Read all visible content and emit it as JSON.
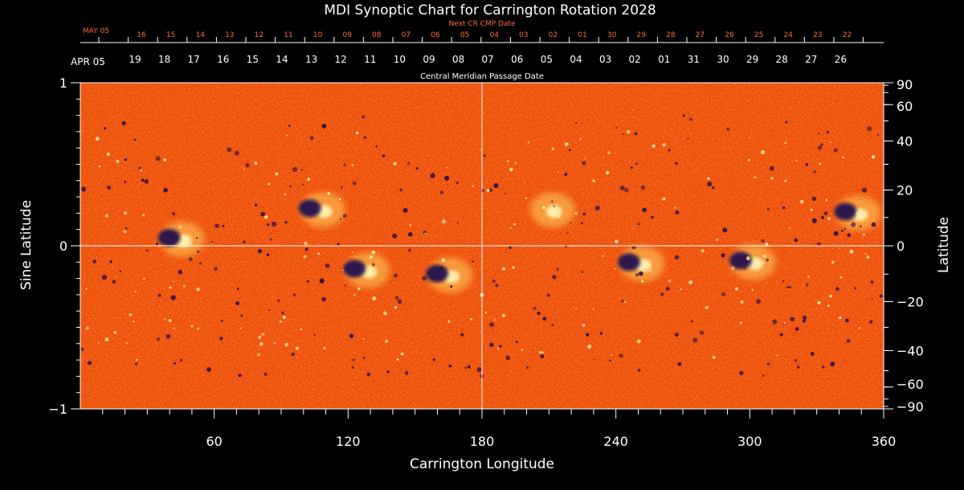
{
  "chart_data": {
    "type": "heatmap",
    "title": "MDI Synoptic Chart for Carrington Rotation 2028",
    "xlabel": "Carrington Longitude",
    "ylabel_left": "Sine Latitude",
    "ylabel_right": "Latitude",
    "xlim": [
      0,
      360
    ],
    "ylim": [
      -1,
      1
    ],
    "x_ticks": [
      60,
      120,
      180,
      240,
      300,
      360
    ],
    "y_ticks_left": [
      {
        "value": 1,
        "label": "1"
      },
      {
        "value": 0,
        "label": "0"
      },
      {
        "value": -1,
        "label": "−1"
      }
    ],
    "y_ticks_right": [
      {
        "lat": 90,
        "label": "90"
      },
      {
        "lat": 60,
        "label": "60"
      },
      {
        "lat": 40,
        "label": "40"
      },
      {
        "lat": 20,
        "label": "20"
      },
      {
        "lat": 0,
        "label": "0"
      },
      {
        "lat": -20,
        "label": "−20"
      },
      {
        "lat": -40,
        "label": "−40"
      },
      {
        "lat": -60,
        "label": "−60"
      },
      {
        "lat": -90,
        "label": "−90"
      }
    ],
    "top_axis_next": {
      "label": "Next CR CMP Date",
      "first_month": "MAY 05",
      "dates": [
        "16",
        "15",
        "14",
        "13",
        "12",
        "11",
        "10",
        "09",
        "08",
        "07",
        "06",
        "05",
        "04",
        "03",
        "02",
        "01",
        "30",
        "29",
        "28",
        "27",
        "26",
        "25",
        "24",
        "23",
        "22"
      ]
    },
    "top_axis_cmp": {
      "label": "Central Meridian Passage Date",
      "first_month": "APR 05",
      "dates": [
        "19",
        "18",
        "17",
        "16",
        "15",
        "14",
        "13",
        "12",
        "11",
        "10",
        "09",
        "08",
        "07",
        "06",
        "05",
        "04",
        "03",
        "02",
        "01",
        "31",
        "30",
        "29",
        "28",
        "27",
        "26"
      ]
    },
    "reference_lines": {
      "longitude": 180,
      "sine_latitude": 0
    },
    "active_regions": [
      {
        "lon": 42,
        "sinlat": 0.04,
        "polarity": "bipolar"
      },
      {
        "lon": 105,
        "sinlat": 0.22,
        "polarity": "bipolar"
      },
      {
        "lon": 125,
        "sinlat": -0.15,
        "polarity": "bipolar"
      },
      {
        "lon": 162,
        "sinlat": -0.18,
        "polarity": "bipolar"
      },
      {
        "lon": 208,
        "sinlat": 0.22,
        "polarity": "positive"
      },
      {
        "lon": 248,
        "sinlat": -0.11,
        "polarity": "bipolar"
      },
      {
        "lon": 298,
        "sinlat": -0.1,
        "polarity": "bipolar"
      },
      {
        "lon": 345,
        "sinlat": 0.2,
        "polarity": "bipolar"
      }
    ],
    "colors": {
      "background_field": "#ff5a10",
      "positive": "#fff2b0",
      "negative": "#1a1050",
      "axes": "#ffffff",
      "cmp_labels": "#ff6a3d"
    }
  }
}
